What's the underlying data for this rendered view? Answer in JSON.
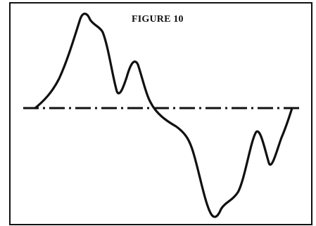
{
  "figure": {
    "label": "FIGURE 10"
  },
  "colors": {
    "ink": "#111111",
    "paper": "#ffffff"
  }
}
